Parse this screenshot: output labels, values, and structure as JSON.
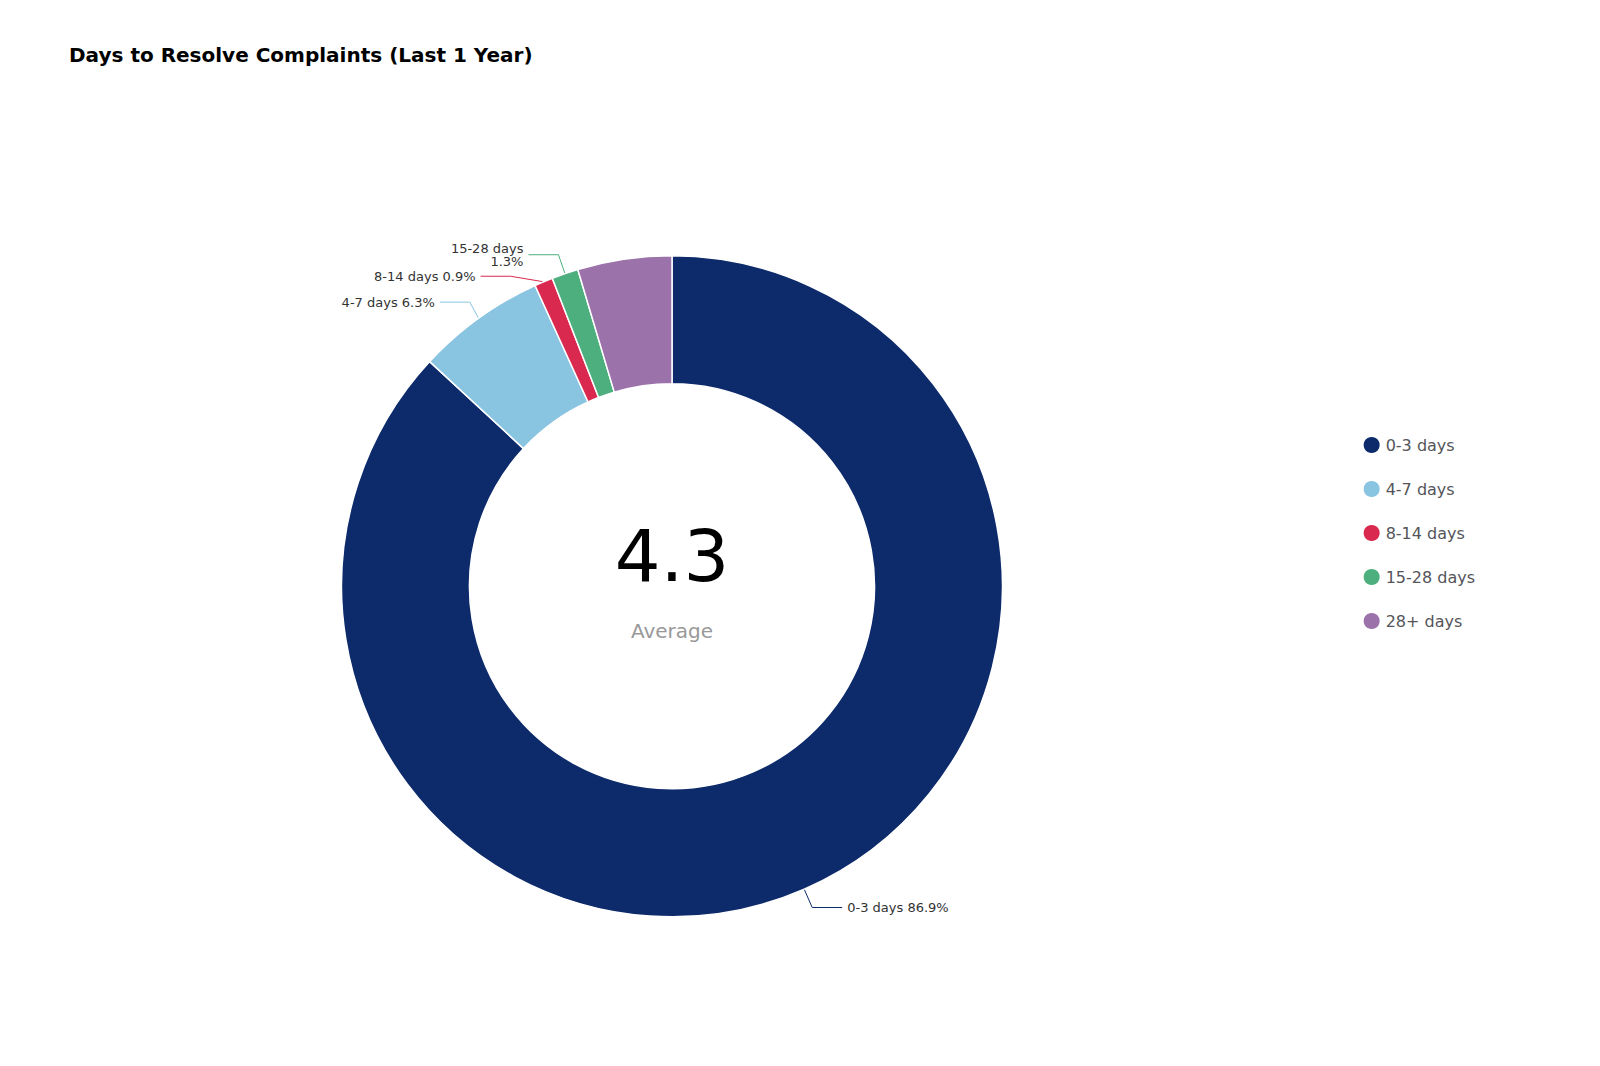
{
  "chart_data": {
    "type": "donut",
    "title": "Days to Resolve Complaints (Last 1 Year)",
    "categories": [
      "0-3 days",
      "4-7 days",
      "8-14 days",
      "15-28 days",
      "28+ days"
    ],
    "values": [
      86.9,
      6.3,
      0.9,
      1.3,
      4.6
    ],
    "colors": [
      "#0d2b6b",
      "#89c4e1",
      "#d9294e",
      "#4caf7d",
      "#9b72aa"
    ],
    "data_labels": true,
    "value_labels": [
      "0-3 days 86.9%",
      "4-7 days 6.3%",
      "8-14 days 0.9%",
      "15-28 days\n1.3%",
      null
    ],
    "annotations": [
      "4.3",
      "Average"
    ],
    "legend": "right"
  }
}
